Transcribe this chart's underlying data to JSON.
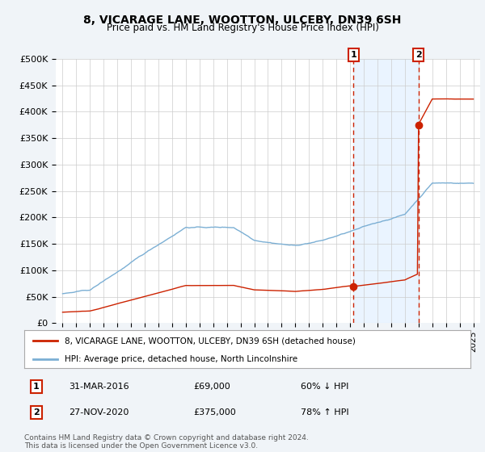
{
  "title": "8, VICARAGE LANE, WOOTTON, ULCEBY, DN39 6SH",
  "subtitle": "Price paid vs. HM Land Registry's House Price Index (HPI)",
  "hpi_label": "HPI: Average price, detached house, North Lincolnshire",
  "property_label": "8, VICARAGE LANE, WOOTTON, ULCEBY, DN39 6SH (detached house)",
  "footer": "Contains HM Land Registry data © Crown copyright and database right 2024.\nThis data is licensed under the Open Government Licence v3.0.",
  "ylim": [
    0,
    500000
  ],
  "yticks": [
    0,
    50000,
    100000,
    150000,
    200000,
    250000,
    300000,
    350000,
    400000,
    450000,
    500000
  ],
  "ytick_labels": [
    "£0",
    "£50K",
    "£100K",
    "£150K",
    "£200K",
    "£250K",
    "£300K",
    "£350K",
    "£400K",
    "£450K",
    "£500K"
  ],
  "xlim_start": 1994.5,
  "xlim_end": 2025.5,
  "transaction1_x": 2016.25,
  "transaction1_y": 69000,
  "transaction2_x": 2021.0,
  "transaction2_y": 375000,
  "transaction1_date": "31-MAR-2016",
  "transaction1_price": "£69,000",
  "transaction1_hpi": "60% ↓ HPI",
  "transaction2_date": "27-NOV-2020",
  "transaction2_price": "£375,000",
  "transaction2_hpi": "78% ↑ HPI",
  "hpi_color": "#7bafd4",
  "price_color": "#cc2200",
  "dashed_color": "#cc2200",
  "shade_color": "#ddeeff",
  "background_color": "#f0f4f8",
  "plot_bg_color": "#ffffff",
  "grid_color": "#cccccc"
}
